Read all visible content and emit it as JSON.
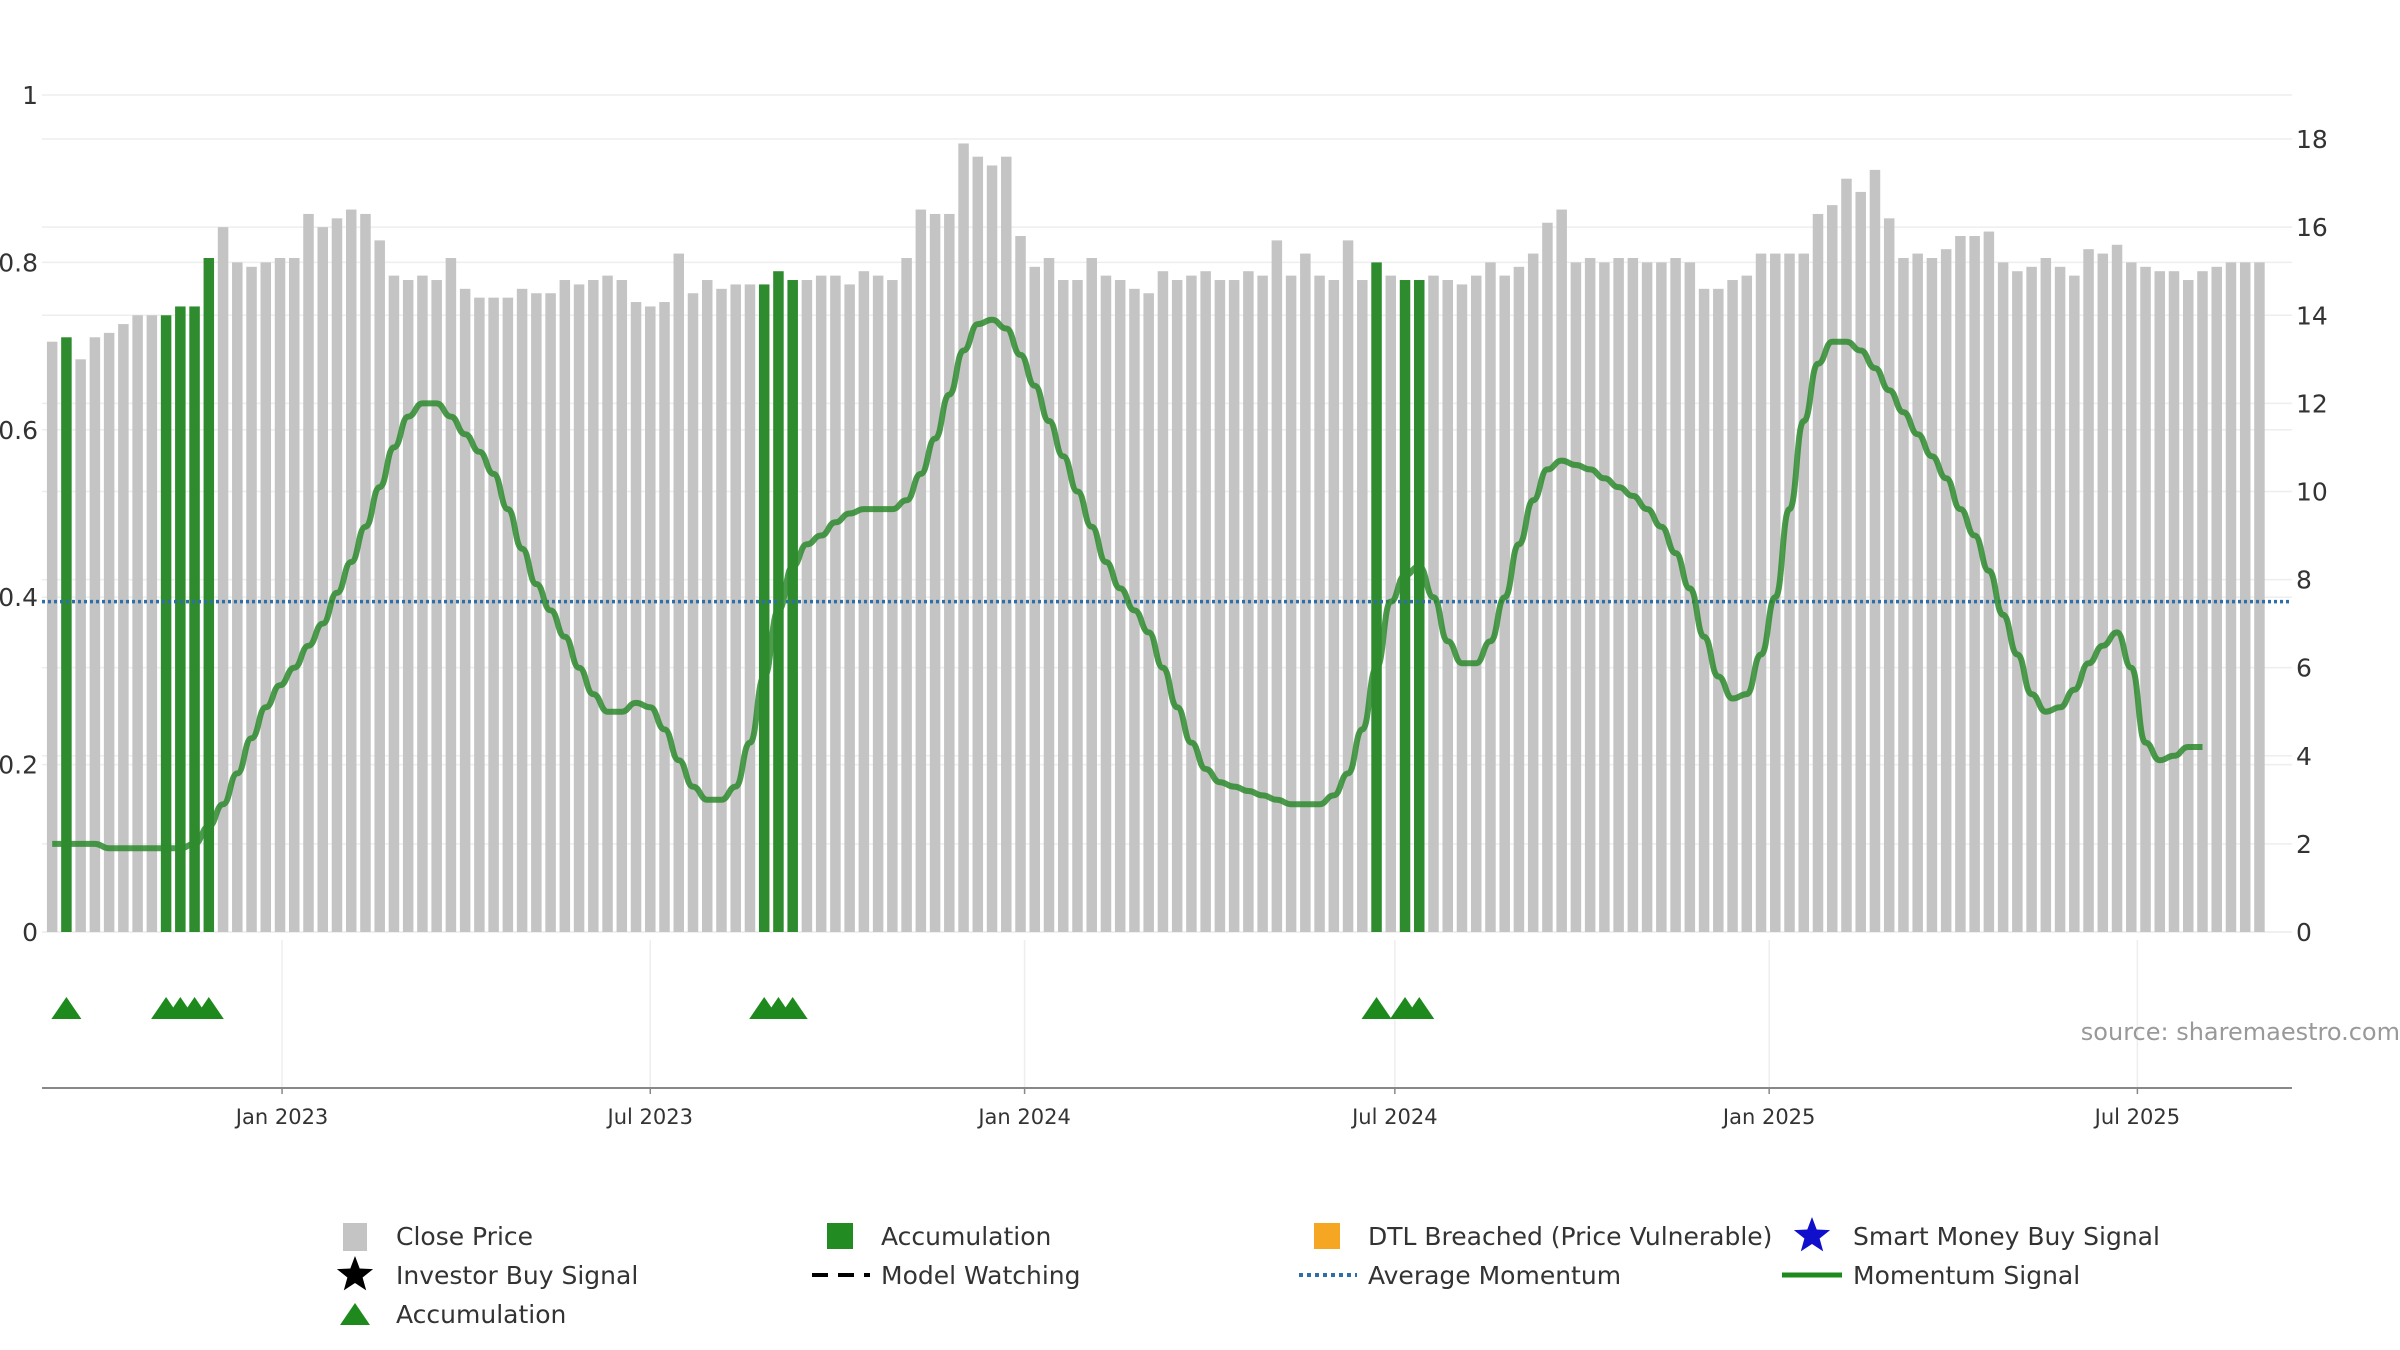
{
  "chart_data": {
    "type": "bar",
    "title": "",
    "xlabel": "",
    "ylabel": "",
    "x_range": [
      "2022-09-05",
      "2025-09-15"
    ],
    "x_ticks": [
      {
        "date": "2023-01-01",
        "label": "Jan 2023"
      },
      {
        "date": "2023-07-01",
        "label": "Jul 2023"
      },
      {
        "date": "2024-01-01",
        "label": "Jan 2024"
      },
      {
        "date": "2024-07-01",
        "label": "Jul 2024"
      },
      {
        "date": "2025-01-01",
        "label": "Jan 2025"
      },
      {
        "date": "2025-07-01",
        "label": "Jul 2025"
      }
    ],
    "y_left": {
      "ylim": [
        0,
        1
      ],
      "ticks": [
        "0",
        "0.2",
        "0.4",
        "0.6",
        "0.8",
        "1"
      ]
    },
    "y_right": {
      "ylim": [
        0,
        19
      ],
      "ticks": [
        "0",
        "2",
        "4",
        "6",
        "8",
        "10",
        "12",
        "14",
        "16",
        "18"
      ]
    },
    "start_date": "2022-09-10",
    "week_step_days": 7,
    "close_price": [
      13.4,
      13.5,
      13.0,
      13.5,
      13.6,
      13.8,
      14.0,
      14.0,
      14.0,
      14.2,
      14.2,
      15.3,
      16.0,
      15.2,
      15.1,
      15.2,
      15.3,
      15.3,
      16.3,
      16.0,
      16.2,
      16.4,
      16.3,
      15.7,
      14.9,
      14.8,
      14.9,
      14.8,
      15.3,
      14.6,
      14.4,
      14.4,
      14.4,
      14.6,
      14.5,
      14.5,
      14.8,
      14.7,
      14.8,
      14.9,
      14.8,
      14.3,
      14.2,
      14.3,
      15.4,
      14.5,
      14.8,
      14.6,
      14.7,
      14.7,
      14.7,
      15.0,
      14.8,
      14.8,
      14.9,
      14.9,
      14.7,
      15.0,
      14.9,
      14.8,
      15.3,
      16.4,
      16.3,
      16.3,
      17.9,
      17.6,
      17.4,
      17.6,
      15.8,
      15.1,
      15.3,
      14.8,
      14.8,
      15.3,
      14.9,
      14.8,
      14.6,
      14.5,
      15.0,
      14.8,
      14.9,
      15.0,
      14.8,
      14.8,
      15.0,
      14.9,
      15.7,
      14.9,
      15.4,
      14.9,
      14.8,
      15.7,
      14.8,
      15.2,
      14.9,
      14.8,
      14.8,
      14.9,
      14.8,
      14.7,
      14.9,
      15.2,
      14.9,
      15.1,
      15.4,
      16.1,
      16.4,
      15.2,
      15.3,
      15.2,
      15.3,
      15.3,
      15.2,
      15.2,
      15.3,
      15.2,
      14.6,
      14.6,
      14.8,
      14.9,
      15.4,
      15.4,
      15.4,
      15.4,
      16.3,
      16.5,
      17.1,
      16.8,
      17.3,
      16.2,
      15.3,
      15.4,
      15.3,
      15.5,
      15.8,
      15.8,
      15.9,
      15.2,
      15.0,
      15.1,
      15.3,
      15.1,
      14.9,
      15.5,
      15.4,
      15.6,
      15.2,
      15.1,
      15.0,
      15.0,
      14.8,
      15.0,
      15.1,
      15.2,
      15.2,
      15.2
    ],
    "accumulation_weeks": [
      1,
      8,
      9,
      10,
      11,
      50,
      51,
      52,
      93,
      95,
      96
    ],
    "accumulation_markers": [
      1,
      8,
      9,
      10,
      11,
      50,
      51,
      52,
      93,
      95,
      96
    ],
    "momentum_signal": [
      2.0,
      2.0,
      2.0,
      2.0,
      1.9,
      1.9,
      1.9,
      1.9,
      1.9,
      1.9,
      2.0,
      2.4,
      2.9,
      3.6,
      4.4,
      5.1,
      5.6,
      6.0,
      6.5,
      7.0,
      7.7,
      8.4,
      9.2,
      10.1,
      11.0,
      11.7,
      12.0,
      12.0,
      11.7,
      11.3,
      10.9,
      10.4,
      9.6,
      8.7,
      7.9,
      7.3,
      6.7,
      6.0,
      5.4,
      5.0,
      5.0,
      5.2,
      5.1,
      4.6,
      3.9,
      3.3,
      3.0,
      3.0,
      3.3,
      4.3,
      5.8,
      7.3,
      8.3,
      8.8,
      9.0,
      9.3,
      9.5,
      9.6,
      9.6,
      9.6,
      9.8,
      10.4,
      11.2,
      12.2,
      13.2,
      13.8,
      13.9,
      13.7,
      13.1,
      12.4,
      11.6,
      10.8,
      10.0,
      9.2,
      8.4,
      7.8,
      7.3,
      6.8,
      6.0,
      5.1,
      4.3,
      3.7,
      3.4,
      3.3,
      3.2,
      3.1,
      3.0,
      2.9,
      2.9,
      2.9,
      3.1,
      3.6,
      4.6,
      6.0,
      7.5,
      8.1,
      8.3,
      7.6,
      6.6,
      6.1,
      6.1,
      6.6,
      7.6,
      8.8,
      9.8,
      10.5,
      10.7,
      10.6,
      10.5,
      10.3,
      10.1,
      9.9,
      9.6,
      9.2,
      8.6,
      7.8,
      6.7,
      5.8,
      5.3,
      5.4,
      6.3,
      7.6,
      9.6,
      11.6,
      12.9,
      13.4,
      13.4,
      13.2,
      12.8,
      12.3,
      11.8,
      11.3,
      10.8,
      10.3,
      9.6,
      9.0,
      8.2,
      7.2,
      6.3,
      5.4,
      5.0,
      5.1,
      5.5,
      6.1,
      6.5,
      6.8,
      6.0,
      4.3,
      3.9,
      4.0,
      4.2,
      4.2
    ],
    "average_momentum": 7.5,
    "legend": [
      {
        "symbol": "bar-gray",
        "label": "Close Price",
        "color": "#bbbbbb"
      },
      {
        "symbol": "square-green",
        "label": "Accumulation",
        "color": "#228b22"
      },
      {
        "symbol": "square-orange",
        "label": "DTL Breached (Price Vulnerable)",
        "color": "#f5a623"
      },
      {
        "symbol": "star-blue",
        "label": "Smart Money Buy Signal",
        "color": "#1010cc"
      },
      {
        "symbol": "star-black",
        "label": "Investor Buy Signal",
        "color": "#000000"
      },
      {
        "symbol": "dash-black",
        "label": "Model Watching",
        "color": "#000000"
      },
      {
        "symbol": "dot-blue",
        "label": "Average Momentum",
        "color": "#2f6fa8"
      },
      {
        "symbol": "line-green",
        "label": "Momentum Signal",
        "color": "#1e8a1e"
      },
      {
        "symbol": "triangle-green",
        "label": "Accumulation",
        "color": "#1e8a1e"
      }
    ],
    "annotation": "source: sharemaestro.com"
  },
  "colors": {
    "close_price": "#c4c4c4",
    "accumulation": "#2e8b2e",
    "momentum": "#2e8b2e",
    "average_momentum": "#2f6fa8",
    "grid": "#eeeeee",
    "axis": "#888888",
    "text": "#333333",
    "annotation": "#999999"
  }
}
